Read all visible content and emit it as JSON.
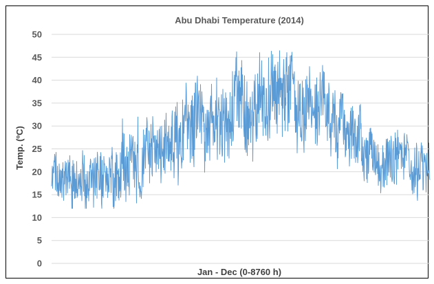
{
  "chart_data": {
    "type": "line",
    "title": "Abu Dhabi Temperature (2014)",
    "xlabel": "Jan - Dec (0-8760 h)",
    "ylabel": "Temp. (ºC)",
    "xlim": [
      0,
      8760
    ],
    "ylim": [
      0,
      50
    ],
    "yticks": [
      "0",
      "5",
      "10",
      "15",
      "20",
      "25",
      "30",
      "35",
      "40",
      "45",
      "50"
    ],
    "grid": true,
    "legend": "none",
    "series_color": "#5b9bd5",
    "series": [
      {
        "name": "",
        "x": [
          0,
          240,
          480,
          720,
          960,
          1200,
          1440,
          1680,
          1920,
          2160,
          2400,
          2640,
          2880,
          3120,
          3360,
          3600,
          3840,
          4080,
          4320,
          4560,
          4800,
          5040,
          5280,
          5520,
          5760,
          6000,
          6240,
          6480,
          6720,
          6960,
          7200,
          7440,
          7680,
          7920,
          8160,
          8400,
          8760
        ],
        "mean": [
          19,
          18.5,
          18,
          18.5,
          19,
          18,
          19.5,
          21,
          23,
          23.5,
          24.5,
          26,
          27.5,
          29,
          30,
          30.5,
          31,
          32,
          34,
          35,
          35.5,
          36,
          36,
          35.5,
          35,
          34.5,
          33.5,
          32.5,
          31.5,
          30,
          27,
          25,
          23.5,
          22.5,
          21,
          20.5,
          20
        ],
        "spread": [
          5,
          6,
          6,
          6,
          6,
          5.5,
          6,
          7,
          8,
          7.5,
          7.5,
          8,
          8.5,
          8.5,
          8.5,
          8,
          8,
          8.5,
          9,
          9.5,
          9.5,
          9,
          9,
          9,
          8.5,
          8,
          7.5,
          7,
          7,
          7,
          6.5,
          6,
          6,
          6,
          5.5,
          5.5,
          5
        ],
        "max_annotated": 47,
        "min_annotated": 12
      }
    ]
  }
}
